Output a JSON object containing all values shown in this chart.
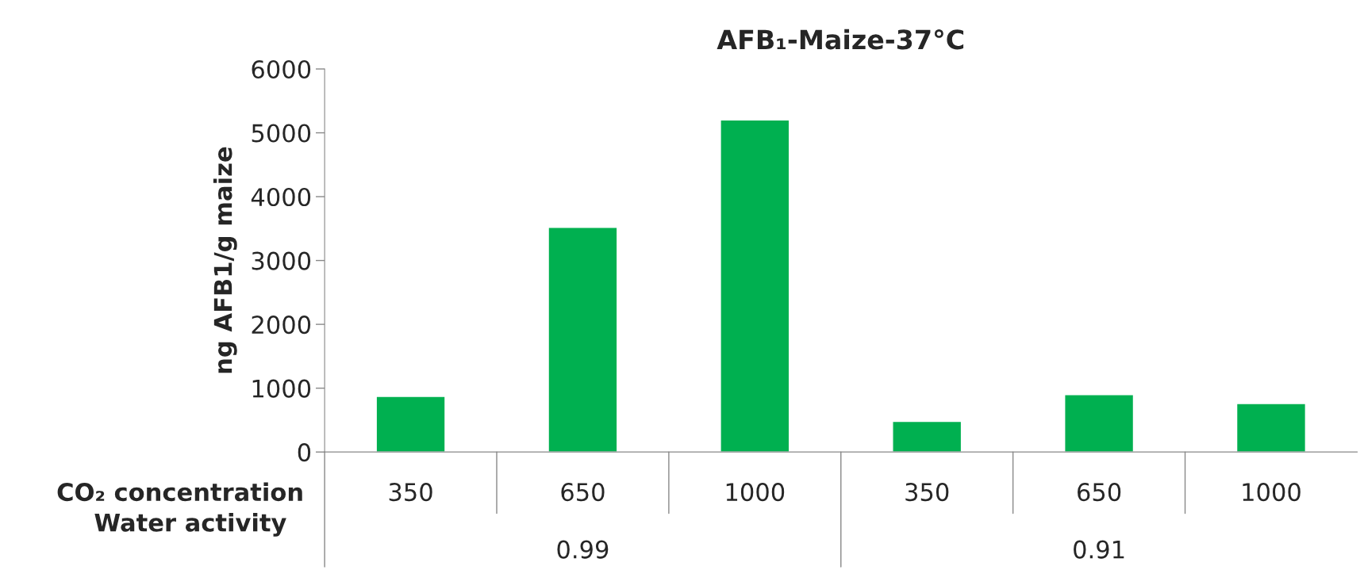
{
  "chart_data": {
    "type": "bar",
    "title": "AFB₁-Maize-37°C",
    "ylabel": "ng AFB1/g maize",
    "xlabel": "CO₂ concentration",
    "categories": [
      "350",
      "650",
      "1000",
      "350",
      "650",
      "1000"
    ],
    "values": [
      870,
      3520,
      5200,
      480,
      900,
      760
    ],
    "color": "#00b050",
    "ylim": [
      0,
      6000
    ],
    "yticks": [
      0,
      1000,
      2000,
      3000,
      4000,
      5000,
      6000
    ],
    "grid": false,
    "legend": false,
    "annotations": [
      "Water activity",
      "0.99",
      "0.91"
    ]
  }
}
